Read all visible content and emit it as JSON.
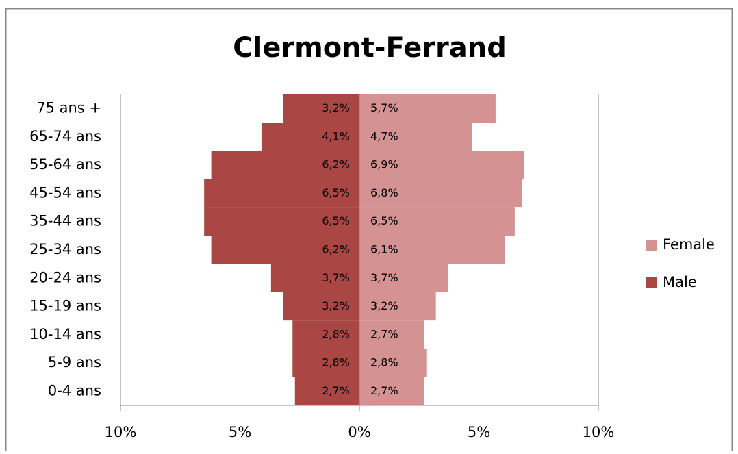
{
  "chart_data": {
    "type": "pyramid",
    "title": "Clermont-Ferrand",
    "categories": [
      "0-4 ans",
      "5-9 ans",
      "10-14 ans",
      "15-19 ans",
      "20-24 ans",
      "25-34 ans",
      "35-44 ans",
      "45-54 ans",
      "55-64 ans",
      "65-74 ans",
      "75 ans +"
    ],
    "series": [
      {
        "name": "Female",
        "color": "#d49392",
        "values": [
          2.7,
          2.8,
          2.7,
          3.2,
          3.7,
          6.1,
          6.5,
          6.8,
          6.9,
          4.7,
          5.7
        ],
        "value_labels": [
          "2,7%",
          "2,8%",
          "2,7%",
          "3,2%",
          "3,7%",
          "6,1%",
          "6,5%",
          "6,8%",
          "6,9%",
          "4,7%",
          "5,7%"
        ]
      },
      {
        "name": "Male",
        "color": "#aa4643",
        "values": [
          -2.7,
          -2.8,
          -2.8,
          -3.2,
          -3.7,
          -6.2,
          -6.5,
          -6.5,
          -6.2,
          -4.1,
          -3.2
        ],
        "value_labels": [
          "2,7%",
          "2,8%",
          "2,8%",
          "3,2%",
          "3,7%",
          "6,2%",
          "6,5%",
          "6,5%",
          "6,2%",
          "4,1%",
          "3,2%"
        ]
      }
    ],
    "xlim": [
      -10,
      10
    ],
    "xticks": [
      {
        "value": -10,
        "label": "10%"
      },
      {
        "value": -5,
        "label": "5%"
      },
      {
        "value": 0,
        "label": "0%"
      },
      {
        "value": 5,
        "label": "5%"
      },
      {
        "value": 10,
        "label": "10%"
      }
    ],
    "grid": true,
    "legend": "right"
  }
}
